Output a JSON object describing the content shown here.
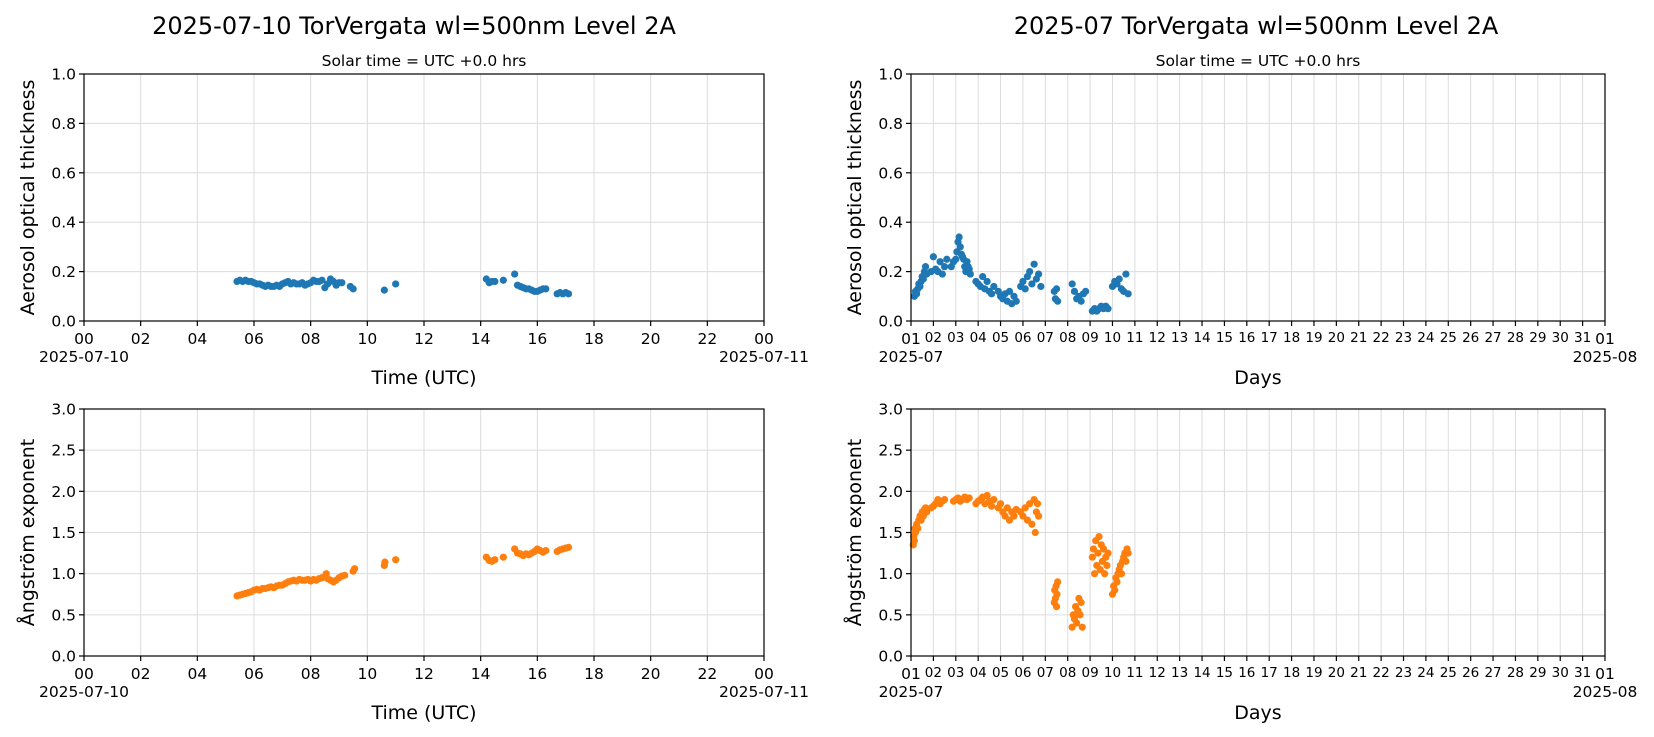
{
  "colors": {
    "aod": "#1f77b4",
    "angstrom": "#ff7f0e",
    "grid": "#dcdcdc"
  },
  "titles": {
    "left": "2025-07-10  TorVergata  wl=500nm  Level 2A",
    "right": "2025-07  TorVergata  wl=500nm  Level 2A"
  },
  "chart_data": [
    {
      "id": "daily-aod",
      "type": "scatter",
      "subtitle": "Solar time = UTC +0.0 hrs",
      "xlabel": "Time (UTC)",
      "ylabel": "Aerosol optical thickness",
      "xlim": [
        0,
        24
      ],
      "ylim": [
        0,
        1.0
      ],
      "yticks": [
        "0.0",
        "0.2",
        "0.4",
        "0.6",
        "0.8",
        "1.0"
      ],
      "ytick_values": [
        0,
        0.2,
        0.4,
        0.6,
        0.8,
        1.0
      ],
      "xticks": [
        "00",
        "02",
        "04",
        "06",
        "08",
        "10",
        "12",
        "14",
        "16",
        "18",
        "20",
        "22",
        "00"
      ],
      "xtick_values": [
        0,
        2,
        4,
        6,
        8,
        10,
        12,
        14,
        16,
        18,
        20,
        22,
        24
      ],
      "x_start_label": "2025-07-10",
      "x_end_label": "2025-07-11",
      "grid": true,
      "series": [
        {
          "x": [
            5.4,
            5.5,
            5.6,
            5.7,
            5.8,
            5.9,
            6.0,
            6.1,
            6.2,
            6.3,
            6.4,
            6.5,
            6.6,
            6.7,
            6.8,
            6.9,
            7.0,
            7.1,
            7.2,
            7.3,
            7.4,
            7.5,
            7.6,
            7.7,
            7.8,
            7.9,
            8.0,
            8.1,
            8.2,
            8.3,
            8.4,
            8.5,
            8.6,
            8.7,
            8.8,
            8.9,
            9.0,
            9.1,
            9.4,
            9.5,
            10.6,
            11.0,
            14.2,
            14.3,
            14.4,
            14.5,
            14.8,
            15.2,
            15.3,
            15.4,
            15.5,
            15.6,
            15.7,
            15.8,
            15.9,
            16.0,
            16.1,
            16.2,
            16.3,
            16.7,
            16.8,
            16.9,
            17.0,
            17.1
          ],
          "y": [
            0.16,
            0.165,
            0.16,
            0.165,
            0.16,
            0.16,
            0.155,
            0.15,
            0.15,
            0.145,
            0.14,
            0.145,
            0.14,
            0.14,
            0.145,
            0.14,
            0.15,
            0.155,
            0.16,
            0.15,
            0.155,
            0.15,
            0.15,
            0.155,
            0.145,
            0.15,
            0.155,
            0.165,
            0.16,
            0.16,
            0.165,
            0.135,
            0.15,
            0.17,
            0.16,
            0.145,
            0.155,
            0.155,
            0.14,
            0.13,
            0.125,
            0.15,
            0.17,
            0.155,
            0.16,
            0.16,
            0.165,
            0.19,
            0.145,
            0.14,
            0.135,
            0.13,
            0.13,
            0.125,
            0.12,
            0.12,
            0.125,
            0.13,
            0.13,
            0.11,
            0.115,
            0.11,
            0.115,
            0.11
          ]
        }
      ]
    },
    {
      "id": "monthly-aod",
      "type": "scatter",
      "subtitle": "Solar time = UTC +0.0 hrs",
      "xlabel": "Days",
      "ylabel": "Aerosol optical thickness",
      "xlim": [
        1,
        32
      ],
      "ylim": [
        0,
        1.0
      ],
      "yticks": [
        "0.0",
        "0.2",
        "0.4",
        "0.6",
        "0.8",
        "1.0"
      ],
      "ytick_values": [
        0,
        0.2,
        0.4,
        0.6,
        0.8,
        1.0
      ],
      "xticks": [
        "01",
        "02",
        "03",
        "04",
        "05",
        "06",
        "07",
        "08",
        "09",
        "10",
        "11",
        "12",
        "13",
        "14",
        "15",
        "16",
        "17",
        "18",
        "19",
        "20",
        "21",
        "22",
        "23",
        "24",
        "25",
        "26",
        "27",
        "28",
        "29",
        "30",
        "31",
        "01"
      ],
      "x_start_label": "2025-07",
      "x_end_label": "2025-08",
      "grid": true,
      "series": [
        {
          "x": [
            1.15,
            1.2,
            1.25,
            1.3,
            1.35,
            1.4,
            1.45,
            1.5,
            1.55,
            1.6,
            1.65,
            1.7,
            1.9,
            2.0,
            2.1,
            2.2,
            2.3,
            2.4,
            2.5,
            2.6,
            2.8,
            2.9,
            3.0,
            3.05,
            3.1,
            3.15,
            3.2,
            3.25,
            3.3,
            3.35,
            3.4,
            3.45,
            3.5,
            3.55,
            3.6,
            3.65,
            3.9,
            4.0,
            4.1,
            4.2,
            4.3,
            4.4,
            4.5,
            4.6,
            4.7,
            4.9,
            5.0,
            5.1,
            5.2,
            5.3,
            5.4,
            5.5,
            5.6,
            5.7,
            5.9,
            6.0,
            6.1,
            6.2,
            6.3,
            6.4,
            6.5,
            6.6,
            6.7,
            6.8,
            7.4,
            7.45,
            7.5,
            7.55,
            8.2,
            8.3,
            8.4,
            8.5,
            8.6,
            8.7,
            8.8,
            9.1,
            9.2,
            9.3,
            9.4,
            9.5,
            9.6,
            9.7,
            9.8,
            10.0,
            10.1,
            10.2,
            10.3,
            10.4,
            10.5,
            10.6,
            10.7
          ],
          "y": [
            0.1,
            0.12,
            0.11,
            0.13,
            0.15,
            0.14,
            0.16,
            0.18,
            0.17,
            0.2,
            0.22,
            0.19,
            0.2,
            0.26,
            0.21,
            0.2,
            0.24,
            0.19,
            0.22,
            0.25,
            0.22,
            0.24,
            0.25,
            0.28,
            0.32,
            0.34,
            0.3,
            0.27,
            0.26,
            0.25,
            0.22,
            0.2,
            0.24,
            0.22,
            0.21,
            0.19,
            0.16,
            0.15,
            0.14,
            0.18,
            0.13,
            0.16,
            0.12,
            0.11,
            0.14,
            0.12,
            0.1,
            0.09,
            0.11,
            0.08,
            0.12,
            0.07,
            0.1,
            0.08,
            0.14,
            0.16,
            0.13,
            0.18,
            0.2,
            0.15,
            0.23,
            0.17,
            0.19,
            0.14,
            0.12,
            0.09,
            0.13,
            0.08,
            0.15,
            0.12,
            0.09,
            0.1,
            0.08,
            0.11,
            0.12,
            0.04,
            0.05,
            0.04,
            0.05,
            0.06,
            0.05,
            0.06,
            0.05,
            0.14,
            0.16,
            0.15,
            0.17,
            0.13,
            0.12,
            0.19,
            0.11
          ]
        }
      ]
    },
    {
      "id": "daily-angstrom",
      "type": "scatter",
      "subtitle": "",
      "xlabel": "Time (UTC)",
      "ylabel": "Ångström exponent",
      "xlim": [
        0,
        24
      ],
      "ylim": [
        0,
        3.0
      ],
      "yticks": [
        "0.0",
        "0.5",
        "1.0",
        "1.5",
        "2.0",
        "2.5",
        "3.0"
      ],
      "ytick_values": [
        0,
        0.5,
        1.0,
        1.5,
        2.0,
        2.5,
        3.0
      ],
      "xticks": [
        "00",
        "02",
        "04",
        "06",
        "08",
        "10",
        "12",
        "14",
        "16",
        "18",
        "20",
        "22",
        "00"
      ],
      "xtick_values": [
        0,
        2,
        4,
        6,
        8,
        10,
        12,
        14,
        16,
        18,
        20,
        22,
        24
      ],
      "x_start_label": "2025-07-10",
      "x_end_label": "2025-07-11",
      "grid": true,
      "series": [
        {
          "x": [
            5.4,
            5.5,
            5.6,
            5.7,
            5.8,
            5.9,
            6.0,
            6.1,
            6.2,
            6.3,
            6.4,
            6.5,
            6.6,
            6.7,
            6.8,
            6.9,
            7.0,
            7.1,
            7.2,
            7.3,
            7.4,
            7.5,
            7.6,
            7.7,
            7.8,
            7.9,
            8.0,
            8.1,
            8.2,
            8.3,
            8.4,
            8.5,
            8.55,
            8.6,
            8.7,
            8.8,
            8.9,
            9.0,
            9.1,
            9.2,
            9.5,
            9.55,
            10.6,
            10.62,
            11.0,
            14.2,
            14.3,
            14.4,
            14.5,
            14.8,
            15.2,
            15.3,
            15.4,
            15.5,
            15.6,
            15.7,
            15.8,
            15.9,
            16.0,
            16.1,
            16.2,
            16.3,
            16.7,
            16.8,
            16.9,
            17.0,
            17.1
          ],
          "y": [
            0.73,
            0.74,
            0.75,
            0.76,
            0.77,
            0.78,
            0.8,
            0.81,
            0.8,
            0.82,
            0.82,
            0.83,
            0.84,
            0.83,
            0.85,
            0.86,
            0.86,
            0.88,
            0.9,
            0.91,
            0.92,
            0.91,
            0.93,
            0.92,
            0.92,
            0.93,
            0.91,
            0.93,
            0.92,
            0.94,
            0.95,
            0.96,
            1.0,
            0.94,
            0.92,
            0.9,
            0.92,
            0.95,
            0.97,
            0.98,
            1.03,
            1.06,
            1.1,
            1.14,
            1.17,
            1.2,
            1.16,
            1.15,
            1.17,
            1.2,
            1.3,
            1.25,
            1.24,
            1.22,
            1.24,
            1.23,
            1.25,
            1.27,
            1.3,
            1.28,
            1.26,
            1.28,
            1.27,
            1.29,
            1.3,
            1.31,
            1.32
          ]
        }
      ]
    },
    {
      "id": "monthly-angstrom",
      "type": "scatter",
      "subtitle": "",
      "xlabel": "Days",
      "ylabel": "Ångström exponent",
      "xlim": [
        1,
        32
      ],
      "ylim": [
        0,
        3.0
      ],
      "yticks": [
        "0.0",
        "0.5",
        "1.0",
        "1.5",
        "2.0",
        "2.5",
        "3.0"
      ],
      "ytick_values": [
        0,
        0.5,
        1.0,
        1.5,
        2.0,
        2.5,
        3.0
      ],
      "xticks": [
        "01",
        "02",
        "03",
        "04",
        "05",
        "06",
        "07",
        "08",
        "09",
        "10",
        "11",
        "12",
        "13",
        "14",
        "15",
        "16",
        "17",
        "18",
        "19",
        "20",
        "21",
        "22",
        "23",
        "24",
        "25",
        "26",
        "27",
        "28",
        "29",
        "30",
        "31",
        "01"
      ],
      "x_start_label": "2025-07",
      "x_end_label": "2025-08",
      "grid": true,
      "series": [
        {
          "x": [
            1.1,
            1.12,
            1.15,
            1.18,
            1.2,
            1.25,
            1.3,
            1.35,
            1.4,
            1.45,
            1.5,
            1.55,
            1.6,
            1.65,
            1.7,
            1.9,
            2.0,
            2.1,
            2.2,
            2.3,
            2.4,
            2.5,
            2.9,
            3.0,
            3.1,
            3.2,
            3.3,
            3.4,
            3.5,
            3.6,
            3.9,
            4.0,
            4.1,
            4.2,
            4.3,
            4.4,
            4.5,
            4.6,
            4.7,
            4.9,
            5.0,
            5.1,
            5.2,
            5.3,
            5.4,
            5.5,
            5.6,
            5.7,
            5.9,
            6.0,
            6.1,
            6.2,
            6.3,
            6.4,
            6.5,
            6.55,
            6.6,
            6.65,
            6.7,
            7.4,
            7.42,
            7.45,
            7.48,
            7.5,
            7.52,
            7.55,
            8.2,
            8.25,
            8.3,
            8.35,
            8.4,
            8.45,
            8.5,
            8.55,
            8.6,
            8.65,
            9.1,
            9.15,
            9.2,
            9.25,
            9.3,
            9.35,
            9.4,
            9.45,
            9.5,
            9.55,
            9.6,
            9.65,
            9.7,
            9.75,
            9.8,
            10.0,
            10.05,
            10.1,
            10.15,
            10.2,
            10.25,
            10.3,
            10.35,
            10.4,
            10.45,
            10.5,
            10.55,
            10.6,
            10.65,
            10.7
          ],
          "y": [
            1.35,
            1.45,
            1.4,
            1.55,
            1.5,
            1.6,
            1.55,
            1.65,
            1.7,
            1.65,
            1.75,
            1.7,
            1.78,
            1.8,
            1.75,
            1.8,
            1.82,
            1.85,
            1.9,
            1.85,
            1.88,
            1.9,
            1.88,
            1.9,
            1.92,
            1.88,
            1.9,
            1.93,
            1.9,
            1.92,
            1.85,
            1.88,
            1.9,
            1.93,
            1.85,
            1.95,
            1.88,
            1.82,
            1.9,
            1.8,
            1.85,
            1.75,
            1.7,
            1.8,
            1.65,
            1.75,
            1.7,
            1.78,
            1.75,
            1.7,
            1.8,
            1.65,
            1.85,
            1.6,
            1.9,
            1.5,
            1.75,
            1.85,
            1.7,
            0.65,
            0.8,
            0.7,
            0.85,
            0.6,
            0.75,
            0.9,
            0.35,
            0.5,
            0.45,
            0.6,
            0.4,
            0.55,
            0.7,
            0.5,
            0.65,
            0.35,
            1.2,
            1.3,
            1.0,
            1.4,
            1.1,
            1.25,
            1.45,
            1.05,
            1.35,
            1.15,
            1.3,
            1.0,
            1.2,
            1.1,
            1.25,
            0.75,
            0.85,
            0.8,
            0.95,
            0.9,
            1.0,
            1.05,
            1.1,
            1.0,
            1.15,
            1.2,
            1.25,
            1.15,
            1.3,
            1.25
          ]
        }
      ]
    }
  ]
}
